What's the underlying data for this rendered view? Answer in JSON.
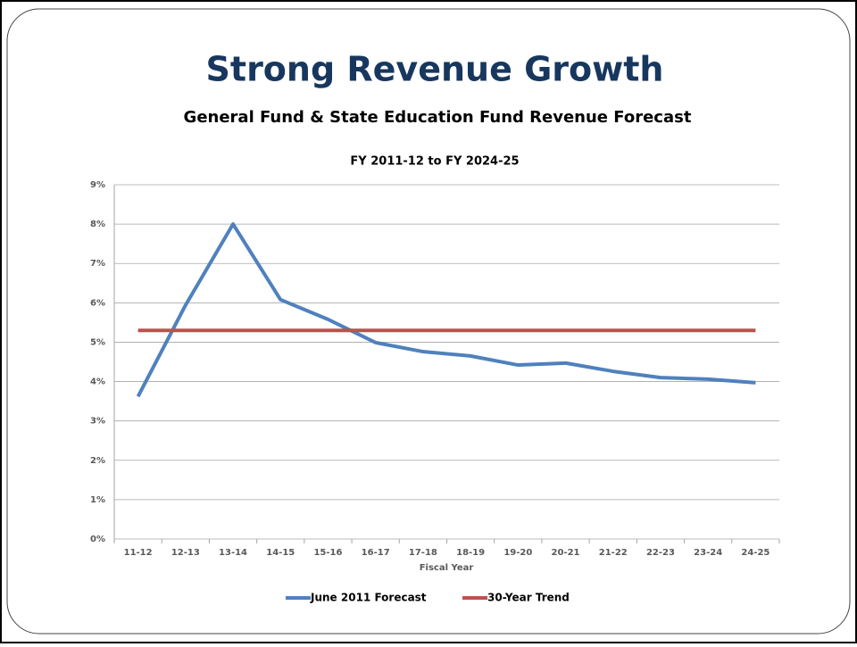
{
  "chart_data": {
    "type": "line",
    "slide_title": "Strong Revenue Growth",
    "title": "General Fund & State Education Fund Revenue Forecast",
    "subtitle": "FY 2011-12 to FY 2024-25",
    "x_label": "Fiscal Year",
    "categories": [
      "11-12",
      "12-13",
      "13-14",
      "14-15",
      "15-16",
      "16-17",
      "17-18",
      "18-19",
      "19-20",
      "20-21",
      "21-22",
      "22-23",
      "23-24",
      "24-25"
    ],
    "series": [
      {
        "name": "June 2011 Forecast",
        "color": "#4f81bd",
        "values": [
          3.62,
          5.94,
          8.0,
          6.08,
          5.58,
          4.99,
          4.76,
          4.65,
          4.42,
          4.47,
          4.26,
          4.1,
          4.06,
          3.97
        ]
      },
      {
        "name": "30-Year Trend",
        "color": "#c0504d",
        "values": [
          5.3,
          5.3,
          5.3,
          5.3,
          5.3,
          5.3,
          5.3,
          5.3,
          5.3,
          5.3,
          5.3,
          5.3,
          5.3,
          5.3
        ]
      }
    ],
    "ylim": [
      0,
      9
    ],
    "yticks": [
      {
        "value": 0,
        "label": "0%"
      },
      {
        "value": 1,
        "label": "1%"
      },
      {
        "value": 2,
        "label": "2%"
      },
      {
        "value": 3,
        "label": "3%"
      },
      {
        "value": 4,
        "label": "4%"
      },
      {
        "value": 5,
        "label": "5%"
      },
      {
        "value": 6,
        "label": "6%"
      },
      {
        "value": 7,
        "label": "7%"
      },
      {
        "value": 8,
        "label": "8%"
      },
      {
        "value": 9,
        "label": "9%"
      }
    ],
    "grid": true,
    "legend": "bottom"
  }
}
